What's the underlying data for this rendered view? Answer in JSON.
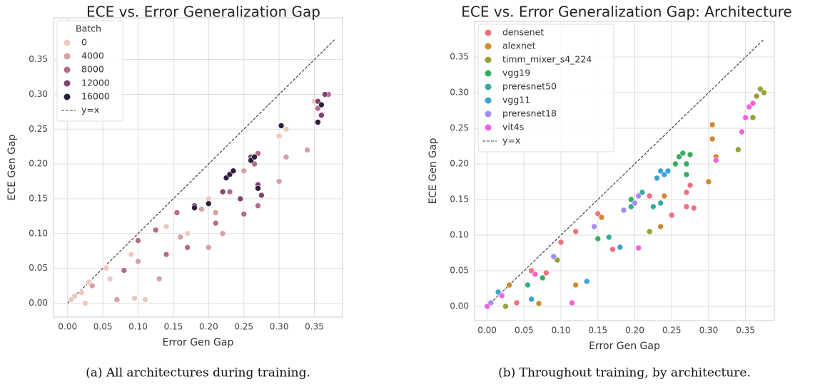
{
  "chart_data": [
    {
      "type": "scatter",
      "title": "ECE vs. Error Generalization Gap",
      "xlabel": "Error Gen Gap",
      "ylabel": "ECE Gen Gap",
      "caption": "(a) All architectures during training.",
      "legend_title": "Batch",
      "legend": "upper left",
      "grid": true,
      "xlim": [
        -0.02,
        0.39
      ],
      "ylim": [
        -0.02,
        0.41
      ],
      "xticks": [
        {
          "value": 0,
          "label": "0.00"
        },
        {
          "value": 0.05,
          "label": "0.05"
        },
        {
          "value": 0.1,
          "label": "0.10"
        },
        {
          "value": 0.15,
          "label": "0.15"
        },
        {
          "value": 0.2,
          "label": "0.20"
        },
        {
          "value": 0.25,
          "label": "0.25"
        },
        {
          "value": 0.3,
          "label": "0.30"
        },
        {
          "value": 0.35,
          "label": "0.35"
        }
      ],
      "yticks": [
        {
          "value": 0,
          "label": "0.00"
        },
        {
          "value": 0.05,
          "label": "0.05"
        },
        {
          "value": 0.1,
          "label": "0.10"
        },
        {
          "value": 0.15,
          "label": "0.15"
        },
        {
          "value": 0.2,
          "label": "0.20"
        },
        {
          "value": 0.25,
          "label": "0.25"
        },
        {
          "value": 0.3,
          "label": "0.30"
        },
        {
          "value": 0.35,
          "label": "0.35"
        }
      ],
      "reference_line": {
        "name": "y=x",
        "color": "#444444",
        "x": [
          0,
          0.38
        ],
        "y": [
          0,
          0.38
        ]
      },
      "series": [
        {
          "name": "0",
          "color": "#ecc9be",
          "x": [
            0.005,
            0.01,
            0.02,
            0.025,
            0.03,
            0.055,
            0.06,
            0.09,
            0.095,
            0.11,
            0.14,
            0.17,
            0.2,
            0.3,
            0.31,
            0.35
          ],
          "values": [
            0.005,
            0.01,
            0.015,
            0.0,
            0.03,
            0.05,
            0.035,
            0.07,
            0.007,
            0.005,
            0.11,
            0.1,
            0.15,
            0.24,
            0.25,
            0.29
          ]
        },
        {
          "name": "4000",
          "color": "#d7a1a4",
          "x": [
            0.035,
            0.07,
            0.1,
            0.13,
            0.16,
            0.19,
            0.21,
            0.25,
            0.3,
            0.31,
            0.34,
            0.36,
            0.2,
            0.22
          ],
          "values": [
            0.025,
            0.005,
            0.06,
            0.035,
            0.095,
            0.135,
            0.13,
            0.19,
            0.175,
            0.21,
            0.22,
            0.27,
            0.08,
            0.1
          ]
        },
        {
          "name": "8000",
          "color": "#b66b8d",
          "x": [
            0.08,
            0.1,
            0.125,
            0.14,
            0.155,
            0.17,
            0.21,
            0.23,
            0.25,
            0.265,
            0.27,
            0.355,
            0.37,
            0.27
          ],
          "values": [
            0.047,
            0.09,
            0.105,
            0.07,
            0.13,
            0.08,
            0.115,
            0.16,
            0.128,
            0.2,
            0.215,
            0.28,
            0.3,
            0.14
          ]
        },
        {
          "name": "12000",
          "color": "#834372",
          "x": [
            0.18,
            0.22,
            0.245,
            0.26,
            0.27,
            0.275,
            0.355,
            0.36,
            0.365
          ],
          "values": [
            0.14,
            0.16,
            0.15,
            0.21,
            0.17,
            0.155,
            0.29,
            0.27,
            0.3
          ]
        },
        {
          "name": "16000",
          "color": "#2d1e3e",
          "x": [
            0.18,
            0.2,
            0.225,
            0.23,
            0.235,
            0.26,
            0.265,
            0.27,
            0.303,
            0.355,
            0.36
          ],
          "values": [
            0.137,
            0.143,
            0.18,
            0.185,
            0.19,
            0.205,
            0.21,
            0.165,
            0.255,
            0.26,
            0.285
          ]
        }
      ]
    },
    {
      "type": "scatter",
      "title": "ECE vs. Error Generalization Gap: Architecture",
      "xlabel": "Error Gen Gap",
      "ylabel": "ECE Gen Gap",
      "caption": "(b) Throughout training, by architecture.",
      "legend": "upper left",
      "grid": true,
      "xlim": [
        -0.017,
        0.389
      ],
      "ylim": [
        -0.02,
        0.4
      ],
      "xticks": [
        {
          "value": 0,
          "label": "0.00"
        },
        {
          "value": 0.05,
          "label": "0.05"
        },
        {
          "value": 0.1,
          "label": "0.10"
        },
        {
          "value": 0.15,
          "label": "0.15"
        },
        {
          "value": 0.2,
          "label": "0.20"
        },
        {
          "value": 0.25,
          "label": "0.25"
        },
        {
          "value": 0.3,
          "label": "0.30"
        },
        {
          "value": 0.35,
          "label": "0.35"
        }
      ],
      "yticks": [
        {
          "value": 0,
          "label": "0.00"
        },
        {
          "value": 0.05,
          "label": "0.05"
        },
        {
          "value": 0.1,
          "label": "0.10"
        },
        {
          "value": 0.15,
          "label": "0.15"
        },
        {
          "value": 0.2,
          "label": "0.20"
        },
        {
          "value": 0.25,
          "label": "0.25"
        },
        {
          "value": 0.3,
          "label": "0.30"
        },
        {
          "value": 0.35,
          "label": "0.35"
        }
      ],
      "reference_line": {
        "name": "y=x",
        "color": "#444444",
        "x": [
          0,
          0.375
        ],
        "y": [
          0,
          0.375
        ]
      },
      "series": [
        {
          "name": "densenet",
          "color": "#f2707f",
          "x": [
            0.005,
            0.04,
            0.06,
            0.08,
            0.1,
            0.12,
            0.15,
            0.17,
            0.22,
            0.25,
            0.27,
            0.275,
            0.27,
            0.28
          ],
          "values": [
            0.005,
            0.005,
            0.05,
            0.047,
            0.09,
            0.105,
            0.13,
            0.08,
            0.155,
            0.128,
            0.16,
            0.17,
            0.14,
            0.138
          ]
        },
        {
          "name": "alexnet",
          "color": "#cc8b2f",
          "x": [
            0.03,
            0.07,
            0.12,
            0.155,
            0.235,
            0.24,
            0.3,
            0.305,
            0.305,
            0.31
          ],
          "values": [
            0.03,
            0.004,
            0.03,
            0.125,
            0.112,
            0.155,
            0.175,
            0.235,
            0.255,
            0.21
          ]
        },
        {
          "name": "timm_mixer_s4_224",
          "color": "#98a233",
          "x": [
            0.025,
            0.095,
            0.22,
            0.34,
            0.36,
            0.365,
            0.37,
            0.375
          ],
          "values": [
            0.0,
            0.065,
            0.105,
            0.22,
            0.265,
            0.295,
            0.305,
            0.3
          ]
        },
        {
          "name": "vgg19",
          "color": "#33ae62",
          "x": [
            0.075,
            0.15,
            0.195,
            0.255,
            0.26,
            0.265,
            0.27,
            0.275,
            0.27
          ],
          "values": [
            0.04,
            0.095,
            0.15,
            0.2,
            0.21,
            0.215,
            0.2,
            0.213,
            0.185
          ]
        },
        {
          "name": "preresnet50",
          "color": "#36ab9c",
          "x": [
            0.055,
            0.165,
            0.195,
            0.21,
            0.225,
            0.235
          ],
          "values": [
            0.03,
            0.097,
            0.14,
            0.16,
            0.14,
            0.145
          ]
        },
        {
          "name": "vgg11",
          "color": "#3aa3cf",
          "x": [
            0.015,
            0.06,
            0.135,
            0.18,
            0.23,
            0.235,
            0.24,
            0.245
          ],
          "values": [
            0.02,
            0.01,
            0.035,
            0.083,
            0.18,
            0.19,
            0.185,
            0.19
          ]
        },
        {
          "name": "preresnet18",
          "color": "#a58cf2",
          "x": [
            0.005,
            0.09,
            0.145,
            0.185,
            0.2,
            0.205
          ],
          "values": [
            0.005,
            0.07,
            0.112,
            0.135,
            0.145,
            0.155
          ]
        },
        {
          "name": "vit4s",
          "color": "#f362dc",
          "x": [
            0.0,
            0.02,
            0.065,
            0.115,
            0.205,
            0.31,
            0.345,
            0.35,
            0.355,
            0.36
          ],
          "values": [
            0.0,
            0.015,
            0.045,
            0.005,
            0.082,
            0.205,
            0.245,
            0.265,
            0.28,
            0.285
          ]
        }
      ]
    }
  ]
}
